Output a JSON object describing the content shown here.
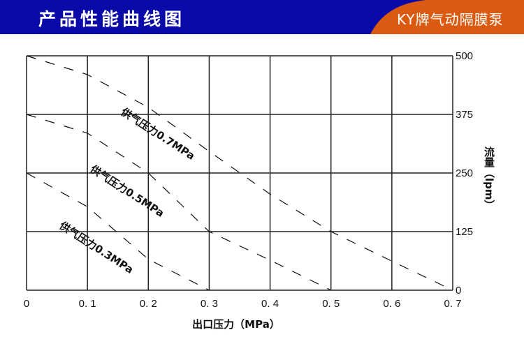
{
  "header": {
    "title": "产品性能曲线图",
    "brand": "KY牌气动隔膜泵",
    "colors": {
      "bar": "#0a0aa8",
      "brand_bg": "#d95a10"
    }
  },
  "chart_data": {
    "type": "line",
    "title": "",
    "xlabel": "出口压力（MPa）",
    "ylabel": "流量（lpm）",
    "xlim": [
      0,
      0.7
    ],
    "ylim": [
      0,
      500
    ],
    "x_ticks": [
      "0",
      "0.1",
      "0.2",
      "0.3",
      "0.4",
      "0.5",
      "0.6",
      "0.7"
    ],
    "y_ticks": [
      "0",
      "125",
      "250",
      "375",
      "500"
    ],
    "y_axis_side": "right",
    "grid": true,
    "line_style": "dashed",
    "series": [
      {
        "name": "供气压力0.7MPa",
        "x": [
          0,
          0.1,
          0.2,
          0.3,
          0.4,
          0.5,
          0.6,
          0.7
        ],
        "y": [
          500,
          460,
          390,
          296,
          205,
          125,
          62,
          0
        ]
      },
      {
        "name": "供气压力0.5MPa",
        "x": [
          0,
          0.1,
          0.2,
          0.3,
          0.4,
          0.5
        ],
        "y": [
          375,
          335,
          250,
          125,
          64,
          0
        ]
      },
      {
        "name": "供气压力0.3MPa",
        "x": [
          0,
          0.1,
          0.2,
          0.3
        ],
        "y": [
          250,
          178,
          66,
          0
        ]
      }
    ]
  }
}
